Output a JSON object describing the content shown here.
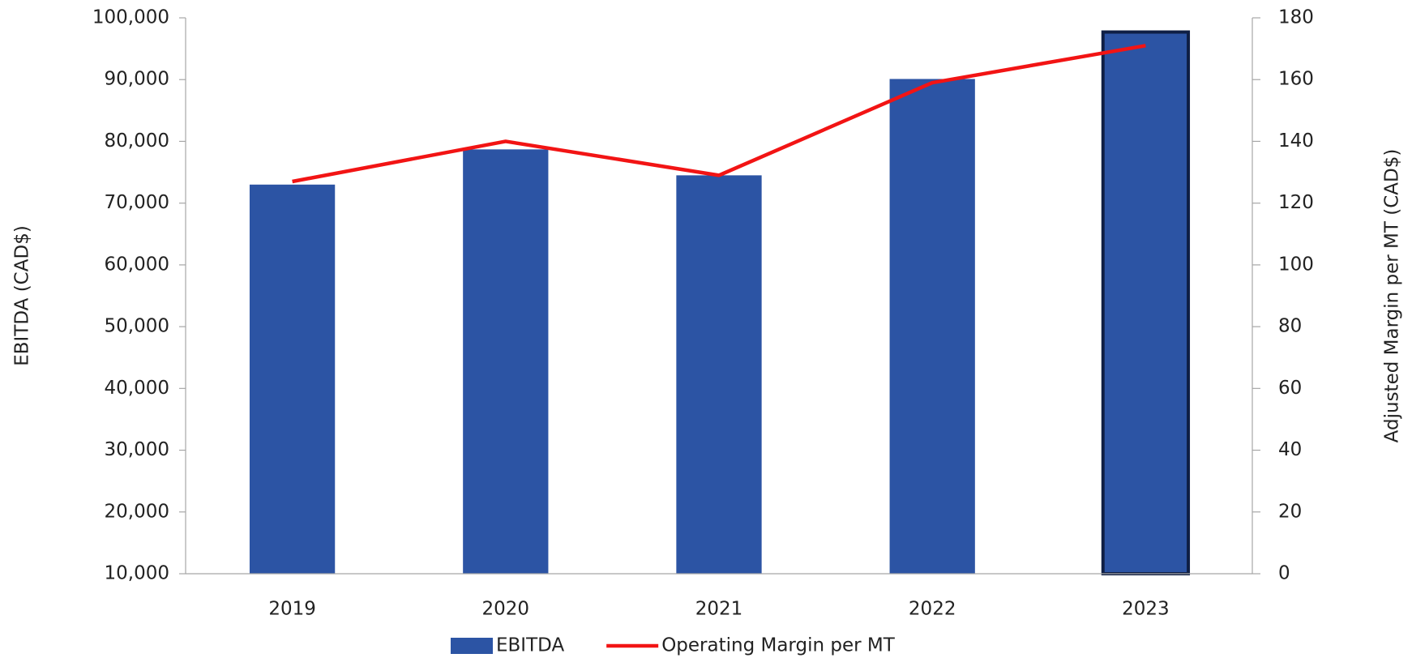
{
  "chart_data": {
    "type": "bar_line",
    "categories": [
      "2019",
      "2020",
      "2021",
      "2022",
      "2023"
    ],
    "ylabel": "EBITDA (CAD$)",
    "y2label": "Adjusted  Margin per MT (CAD$)",
    "ylim": [
      10000,
      100000
    ],
    "yticks": [
      {
        "value": 10000,
        "label": "10,000"
      },
      {
        "value": 20000,
        "label": "20,000"
      },
      {
        "value": 30000,
        "label": "30,000"
      },
      {
        "value": 40000,
        "label": "40,000"
      },
      {
        "value": 50000,
        "label": "50,000"
      },
      {
        "value": 60000,
        "label": "60,000"
      },
      {
        "value": 70000,
        "label": "70,000"
      },
      {
        "value": 80000,
        "label": "80,000"
      },
      {
        "value": 90000,
        "label": "90,000"
      },
      {
        "value": 100000,
        "label": "100,000"
      }
    ],
    "y2lim": [
      0,
      180
    ],
    "y2ticks": [
      0,
      20,
      40,
      60,
      80,
      100,
      120,
      140,
      160,
      180
    ],
    "series": [
      {
        "name": "EBITDA",
        "type": "bar",
        "color": "#2c54a4",
        "values": [
          73000,
          78700,
          74500,
          90100,
          97700
        ]
      },
      {
        "name": "Operating Margin per MT",
        "type": "line",
        "color": "#f21414",
        "axis": "y2",
        "values": [
          127,
          140,
          129,
          159,
          171
        ]
      }
    ],
    "highlight": {
      "index": 4,
      "edge_color": "#0f1f45"
    },
    "legend": "bottom"
  }
}
